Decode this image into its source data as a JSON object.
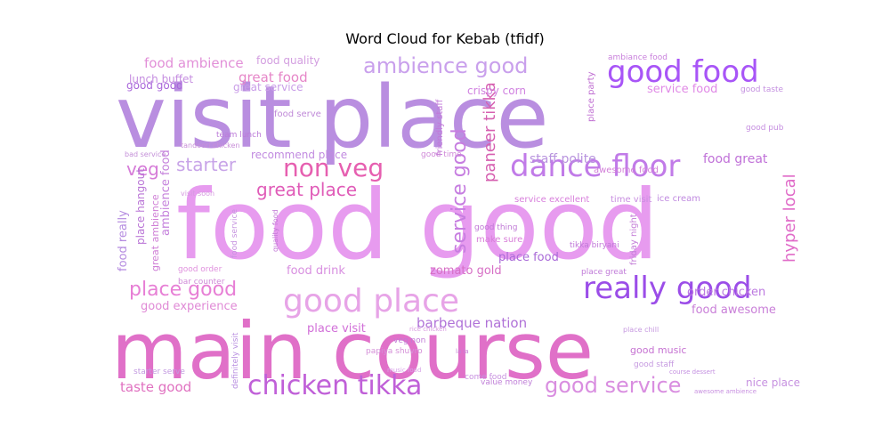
{
  "chart_data": {
    "type": "wordcloud",
    "title": "Word Cloud for Kebab (tfidf)",
    "palette": [
      "#b98ee0",
      "#e79bef",
      "#e070c8",
      "#a855f7",
      "#c17be8",
      "#e67ac8",
      "#d77ad9"
    ],
    "words": [
      {
        "text": "visit place",
        "weight": 100,
        "color": "#b98ee0"
      },
      {
        "text": "food good",
        "weight": 97,
        "color": "#e79bef"
      },
      {
        "text": "main course",
        "weight": 95,
        "color": "#e070c8"
      },
      {
        "text": "good food",
        "weight": 36,
        "color": "#a855f7"
      },
      {
        "text": "dance floor",
        "weight": 36,
        "color": "#c17be8"
      },
      {
        "text": "good place",
        "weight": 36,
        "color": "#e7a4e7"
      },
      {
        "text": "really good",
        "weight": 35,
        "color": "#9b4de8"
      },
      {
        "text": "chicken tikka",
        "weight": 32,
        "color": "#c060d8"
      },
      {
        "text": "non veg",
        "weight": 30,
        "color": "#e65fb0"
      },
      {
        "text": "ambience good",
        "weight": 26,
        "color": "#c9a0ec"
      },
      {
        "text": "good service",
        "weight": 26,
        "color": "#d98ee0"
      },
      {
        "text": "place good",
        "weight": 24,
        "color": "#e77fd5"
      },
      {
        "text": "starter",
        "weight": 22,
        "color": "#c8a4e8"
      },
      {
        "text": "great place",
        "weight": 22,
        "color": "#e05cb8"
      },
      {
        "text": "service good",
        "weight": 22,
        "color": "#c67de0"
      },
      {
        "text": "veg",
        "weight": 22,
        "color": "#d67cd8"
      },
      {
        "text": "paneer tikka",
        "weight": 20,
        "color": "#d65fb0"
      },
      {
        "text": "hyper local",
        "weight": 20,
        "color": "#e06bc8"
      },
      {
        "text": "food ambience",
        "weight": 18,
        "color": "#e290d8"
      },
      {
        "text": "great food",
        "weight": 18,
        "color": "#e686c8"
      },
      {
        "text": "barbeque nation",
        "weight": 17,
        "color": "#b072d8"
      },
      {
        "text": "staff polite",
        "weight": 17,
        "color": "#b893de"
      },
      {
        "text": "taste good",
        "weight": 16,
        "color": "#e071c0"
      },
      {
        "text": "food great",
        "weight": 16,
        "color": "#c071d8"
      },
      {
        "text": "food really",
        "weight": 15,
        "color": "#b58be0"
      },
      {
        "text": "ambience food",
        "weight": 15,
        "color": "#c582dc"
      },
      {
        "text": "good experience",
        "weight": 15,
        "color": "#e08ad6"
      },
      {
        "text": "recommend place",
        "weight": 14,
        "color": "#c18ae0"
      },
      {
        "text": "place food",
        "weight": 15,
        "color": "#a96ad8"
      },
      {
        "text": "zomato gold",
        "weight": 15,
        "color": "#d66fc5"
      },
      {
        "text": "food drink",
        "weight": 14,
        "color": "#d88fe0"
      },
      {
        "text": "place visit",
        "weight": 14,
        "color": "#d16fd8"
      },
      {
        "text": "order chicken",
        "weight": 14,
        "color": "#bc79e0"
      },
      {
        "text": "food awesome",
        "weight": 14,
        "color": "#c97fd8"
      },
      {
        "text": "place hangout",
        "weight": 14,
        "color": "#b974d6"
      },
      {
        "text": "great ambience",
        "weight": 13,
        "color": "#cf7fd6"
      },
      {
        "text": "good music",
        "weight": 11,
        "color": "#c672d2"
      },
      {
        "text": "service food",
        "weight": 14,
        "color": "#e08ae6"
      },
      {
        "text": "food quality",
        "weight": 13,
        "color": "#d39ee0"
      },
      {
        "text": "lunch buffet",
        "weight": 13,
        "color": "#c58de0"
      },
      {
        "text": "great service",
        "weight": 13,
        "color": "#c99de8"
      },
      {
        "text": "good good",
        "weight": 12,
        "color": "#a865da"
      },
      {
        "text": "crispy corn",
        "weight": 13,
        "color": "#d080e0"
      },
      {
        "text": "food serve",
        "weight": 11,
        "color": "#c08ad8"
      },
      {
        "text": "friendly staff",
        "weight": 11,
        "color": "#c178d8"
      },
      {
        "text": "service excellent",
        "weight": 11,
        "color": "#d880dc"
      },
      {
        "text": "time visit",
        "weight": 11,
        "color": "#c88ee0"
      },
      {
        "text": "friday night",
        "weight": 11,
        "color": "#c47fd8"
      },
      {
        "text": "ice cream",
        "weight": 11,
        "color": "#c08ae0"
      },
      {
        "text": "awesome food",
        "weight": 11,
        "color": "#d27fd8"
      },
      {
        "text": "place party",
        "weight": 11,
        "color": "#c06fd2"
      },
      {
        "text": "make sure",
        "weight": 11,
        "color": "#d87ed8"
      },
      {
        "text": "good thing",
        "weight": 10,
        "color": "#c07ad6"
      },
      {
        "text": "tikka biryani",
        "weight": 10,
        "color": "#c078d8"
      },
      {
        "text": "place great",
        "weight": 10,
        "color": "#c07ad8"
      },
      {
        "text": "good order",
        "weight": 10,
        "color": "#e091de"
      },
      {
        "text": "bar counter",
        "weight": 10,
        "color": "#d08ad8"
      },
      {
        "text": "good time",
        "weight": 10,
        "color": "#d08ad8"
      },
      {
        "text": "good staff",
        "weight": 10,
        "color": "#c69ae0"
      },
      {
        "text": "starter serve",
        "weight": 10,
        "color": "#c39ae0"
      },
      {
        "text": "value money",
        "weight": 10,
        "color": "#c080d8"
      },
      {
        "text": "come food",
        "weight": 10,
        "color": "#c891e0"
      },
      {
        "text": "good taste",
        "weight": 10,
        "color": "#c490e0"
      },
      {
        "text": "good pub",
        "weight": 10,
        "color": "#c68ee0"
      },
      {
        "text": "ambiance food",
        "weight": 10,
        "color": "#c980dc"
      },
      {
        "text": "team lunch",
        "weight": 10,
        "color": "#bb7ad8"
      },
      {
        "text": "tandoori chicken",
        "weight": 9,
        "color": "#c88ed8"
      },
      {
        "text": "bad service",
        "weight": 9,
        "color": "#c490d8"
      },
      {
        "text": "visit soon",
        "weight": 9,
        "color": "#d69ae0"
      },
      {
        "text": "papiya shuvro",
        "weight": 9,
        "color": "#d590d8"
      },
      {
        "text": "nice place",
        "weight": 10,
        "color": "#c690e0"
      },
      {
        "text": "veg non",
        "weight": 9,
        "color": "#c07ad6"
      },
      {
        "text": "definitely visit",
        "weight": 10,
        "color": "#b88ee0"
      },
      {
        "text": "food service",
        "weight": 10,
        "color": "#c795e0"
      },
      {
        "text": "quality food",
        "weight": 9,
        "color": "#c27ad6"
      },
      {
        "text": "course dessert",
        "weight": 7,
        "color": "#c490e0"
      },
      {
        "text": "awesome ambience",
        "weight": 7,
        "color": "#c890e0"
      },
      {
        "text": "place chill",
        "weight": 8,
        "color": "#c79ae0"
      },
      {
        "text": "music food",
        "weight": 7,
        "color": "#d8a4e8"
      },
      {
        "text": "rice chicken",
        "weight": 7,
        "color": "#d89ae0"
      },
      {
        "text": "la la",
        "weight": 7,
        "color": "#c47fd6"
      }
    ]
  }
}
